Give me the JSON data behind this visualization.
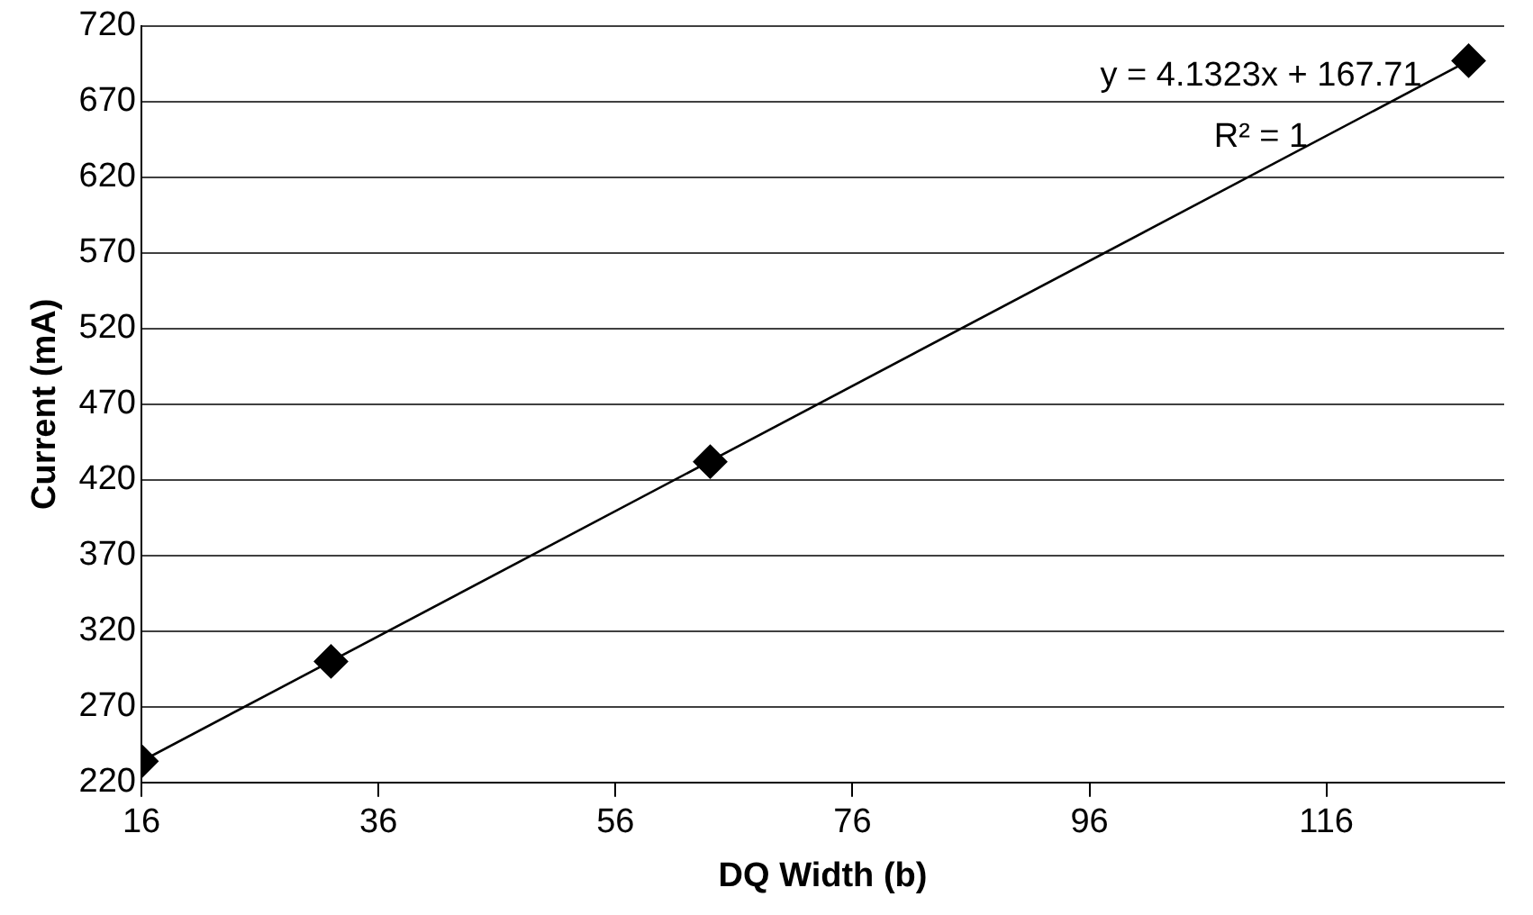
{
  "chart_data": {
    "type": "scatter",
    "xlabel": "DQ Width (b)",
    "ylabel": "Current (mA)",
    "xlim": [
      16,
      131
    ],
    "xticks": [
      16,
      36,
      56,
      76,
      96,
      116
    ],
    "ylim": [
      220,
      720
    ],
    "yticks": [
      220,
      270,
      320,
      370,
      420,
      470,
      520,
      570,
      620,
      670,
      720
    ],
    "grid": "y",
    "legend": false,
    "marker": "diamond",
    "series": [
      {
        "color": "#000000",
        "x": [
          16,
          32,
          64,
          128
        ],
        "values": [
          234,
          300,
          432,
          697
        ]
      },
      {
        "type": "line",
        "color": "#000000",
        "x": [
          16,
          128
        ],
        "values": [
          234,
          697
        ],
        "marker": "none"
      }
    ],
    "annotations": [
      "y = 4.1323x + 167.71",
      "R² = 1"
    ]
  }
}
